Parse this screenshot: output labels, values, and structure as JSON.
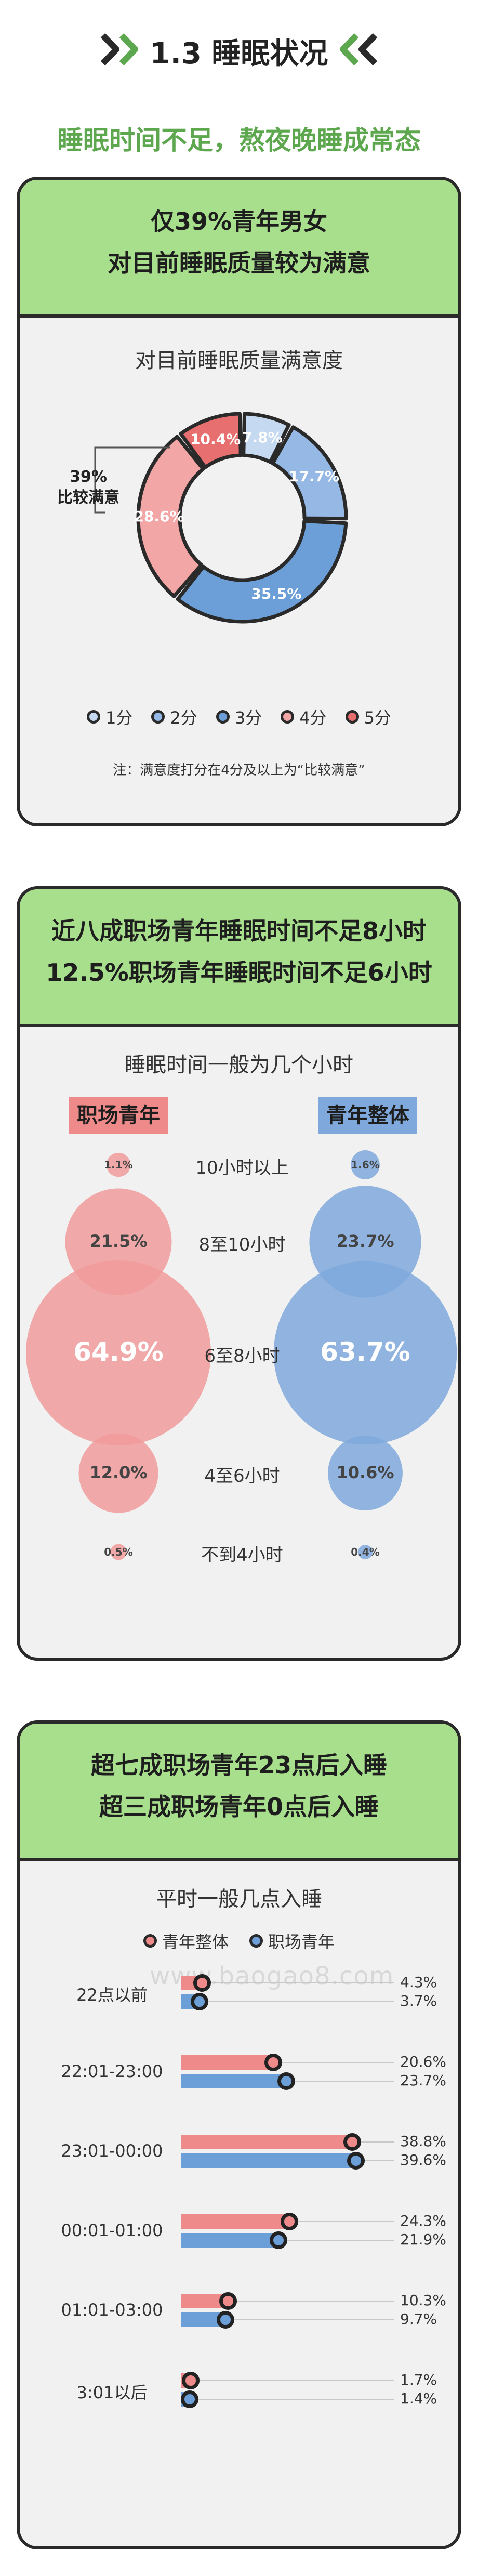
{
  "section": {
    "title": "1.3 睡眠状况",
    "subtitle": "睡眠时间不足，熬夜晚睡成常态"
  },
  "colors": {
    "green": "#a8df8d",
    "red": "#ee8a8a",
    "blue": "#6c9fd8",
    "pale_blue": "#aac7ea",
    "pink": "#f3a6a6",
    "dark": "#2a2a2a"
  },
  "card1": {
    "head_line1": "仅39%青年男女",
    "head_line2": "对目前睡眠质量较为满意",
    "chart_title": "对目前睡眠质量满意度",
    "callout_value": "39%",
    "callout_label": "比较满意",
    "legend": [
      {
        "label": "1分",
        "color": "#c5d9f0"
      },
      {
        "label": "2分",
        "color": "#95b8e4"
      },
      {
        "label": "3分",
        "color": "#6c9fd8"
      },
      {
        "label": "4分",
        "color": "#f3a6a6"
      },
      {
        "label": "5分",
        "color": "#e86f6f"
      }
    ],
    "note": "注：满意度打分在4分及以上为“比较满意”"
  },
  "card2": {
    "head_line1": "近八成职场青年睡眠时间不足8小时",
    "head_line2": "12.5%职场青年睡眠时间不足6小时",
    "chart_title": "睡眠时间一般为几个小时",
    "tag_left": "职场青年",
    "tag_right": "青年整体"
  },
  "card3": {
    "head_line1": "超七成职场青年23点后入睡",
    "head_line2": "超三成职场青年0点后入睡",
    "chart_title": "平时一般几点入睡",
    "legend": [
      {
        "label": "青年整体",
        "color": "#ee8a8a"
      },
      {
        "label": "职场青年",
        "color": "#6c9fd8"
      }
    ],
    "watermark": "www.baogao8.com"
  },
  "chart_data": [
    {
      "type": "pie",
      "title": "对目前睡眠质量满意度",
      "categories": [
        "1分",
        "2分",
        "3分",
        "4分",
        "5分"
      ],
      "values": [
        7.8,
        17.7,
        35.5,
        28.6,
        10.4
      ],
      "labels": [
        "7.8%",
        "17.7%",
        "35.5%",
        "28.6%",
        "10.4%"
      ],
      "colors": [
        "#c5d9f0",
        "#95b8e4",
        "#6c9fd8",
        "#f3a6a6",
        "#e86f6f"
      ],
      "annotation": "39% 比较满意"
    },
    {
      "type": "scatter",
      "title": "睡眠时间一般为几个小时",
      "categories": [
        "10小时以上",
        "8至10小时",
        "6至8小时",
        "4至6小时",
        "不到4小时"
      ],
      "series": [
        {
          "name": "职场青年",
          "values": [
            1.1,
            21.5,
            64.9,
            12.0,
            0.5
          ],
          "labels": [
            "1.1%",
            "21.5%",
            "64.9%",
            "12.0%",
            "0.5%"
          ]
        },
        {
          "name": "青年整体",
          "values": [
            1.6,
            23.7,
            63.7,
            10.6,
            0.4
          ],
          "labels": [
            "1.6%",
            "23.7%",
            "63.7%",
            "10.6%",
            "0.4%"
          ]
        }
      ]
    },
    {
      "type": "bar",
      "title": "平时一般几点入睡",
      "categories": [
        "22点以前",
        "22:01-23:00",
        "23:01-00:00",
        "00:01-01:00",
        "01:01-03:00",
        "3:01以后"
      ],
      "series": [
        {
          "name": "青年整体",
          "values": [
            4.3,
            20.6,
            38.8,
            24.3,
            10.3,
            1.7
          ],
          "labels": [
            "4.3%",
            "20.6%",
            "38.8%",
            "24.3%",
            "10.3%",
            "1.7%"
          ]
        },
        {
          "name": "职场青年",
          "values": [
            3.7,
            23.7,
            39.6,
            21.9,
            9.7,
            1.4
          ],
          "labels": [
            "3.7%",
            "23.7%",
            "39.6%",
            "21.9%",
            "9.7%",
            "1.4%"
          ]
        }
      ]
    }
  ]
}
